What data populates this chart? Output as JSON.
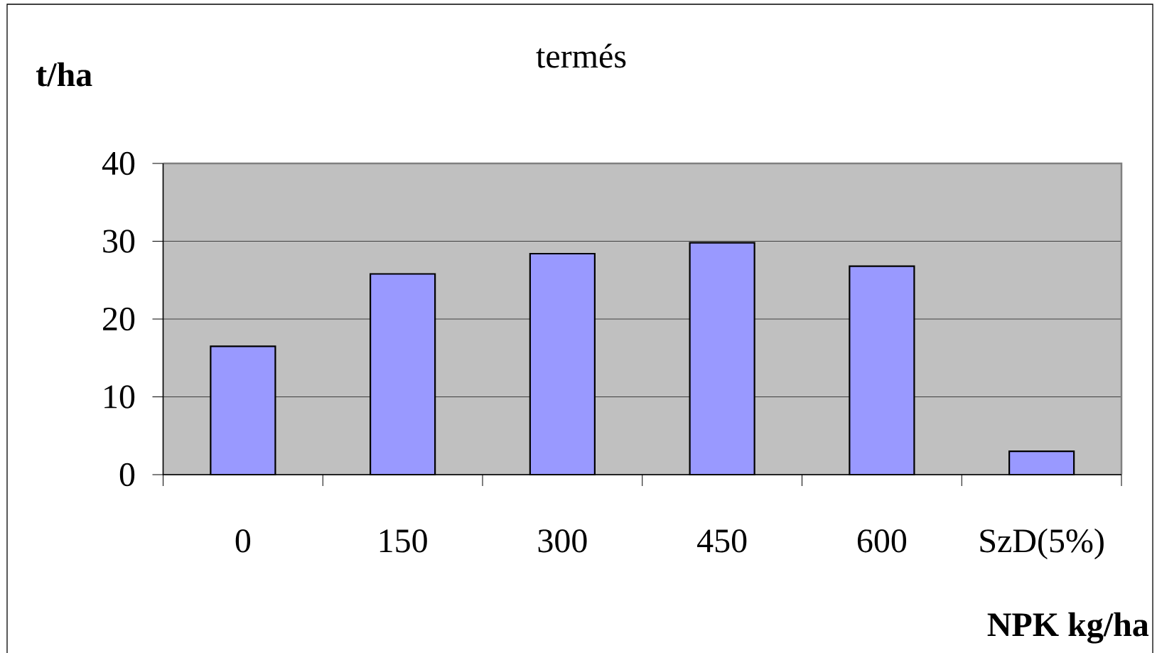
{
  "chart_data": {
    "type": "bar",
    "title": "termés",
    "ylabel": "t/ha",
    "xlabel": "NPK kg/ha",
    "categories": [
      "0",
      "150",
      "300",
      "450",
      "600",
      "SzD(5%)"
    ],
    "values": [
      16.5,
      25.8,
      28.4,
      29.8,
      26.8,
      3.0
    ],
    "color": "#9999ff",
    "ylim": [
      0,
      40
    ],
    "yticks": [
      0,
      10,
      20,
      30,
      40
    ],
    "grid": "y"
  }
}
